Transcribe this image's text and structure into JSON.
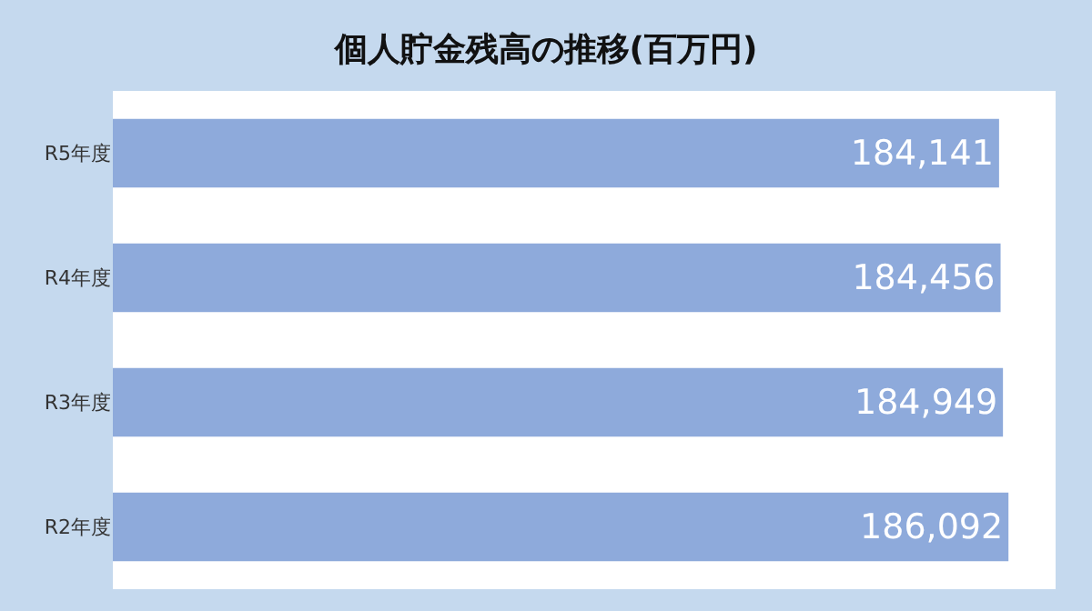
{
  "chart_data": {
    "type": "bar",
    "orientation": "horizontal",
    "title": "個人貯金残高の推移(百万円)",
    "categories": [
      "R5年度",
      "R4年度",
      "R3年度",
      "R2年度"
    ],
    "values": [
      184141,
      184456,
      184949,
      186092
    ],
    "value_labels": [
      "184,141",
      "184,456",
      "184,949",
      "186,092"
    ],
    "color": "#8eaadb",
    "tick_labels": "y"
  }
}
